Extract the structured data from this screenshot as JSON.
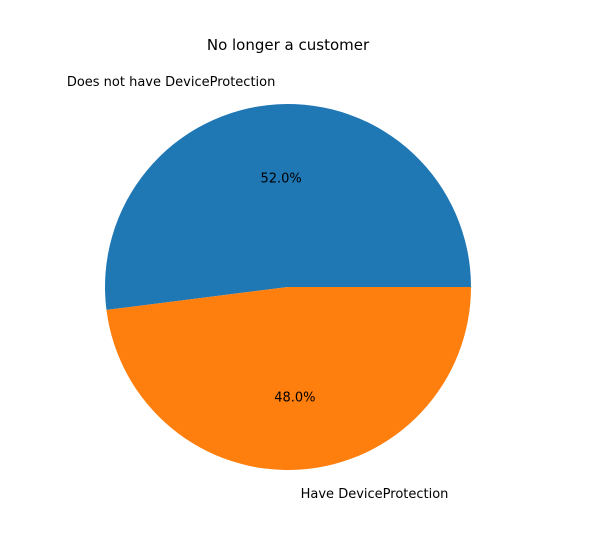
{
  "chart_data": {
    "type": "pie",
    "title": "No longer a customer",
    "slices": [
      {
        "label": "Does not have DeviceProtection",
        "value": 52.0,
        "pct_label": "52.0%",
        "color": "#1f77b4"
      },
      {
        "label": "Have DeviceProtection",
        "value": 48.0,
        "pct_label": "48.0%",
        "color": "#ff7f0e"
      }
    ],
    "start_angle_deg": 0,
    "direction": "counterclockwise",
    "legend": "none"
  }
}
